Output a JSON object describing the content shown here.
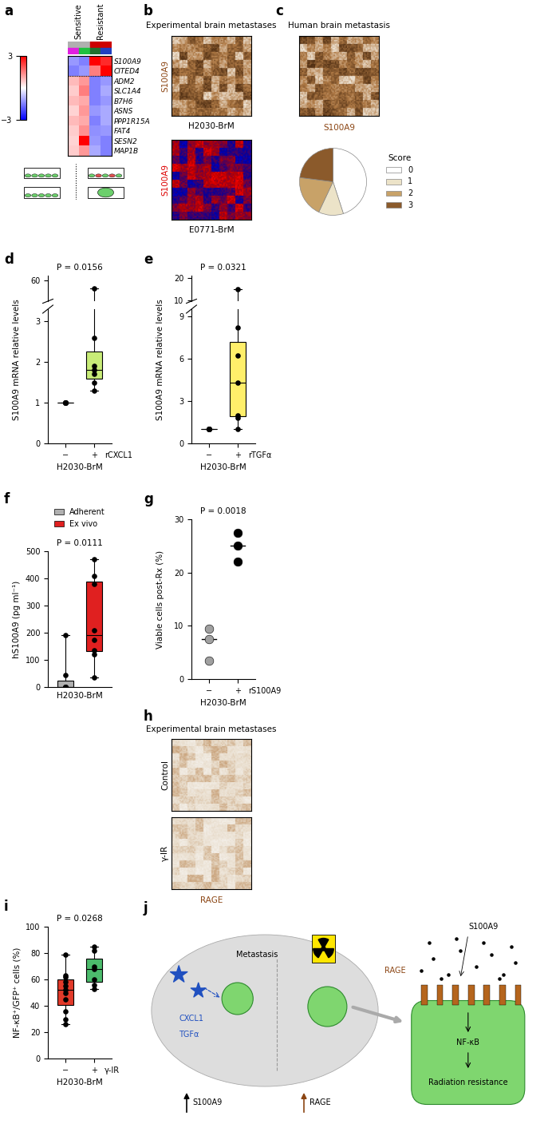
{
  "chart_data": [
    {
      "panel": "a",
      "type": "heatmap",
      "column_groups": [
        {
          "name": "Sensitive",
          "columns": 2
        },
        {
          "name": "Resistant",
          "columns": 2
        }
      ],
      "column_colors": [
        "#e020e0",
        "#20c040",
        "#207030",
        "#2040c0"
      ],
      "rows": [
        "S100A9",
        "CITED4",
        "ADM2",
        "SLC1A4",
        "B7H6",
        "ASNS",
        "PPP1R15A",
        "FAT4",
        "SESN2",
        "MAP1B"
      ],
      "cells": [
        [
          -1.2,
          -1.5,
          3.0,
          2.5
        ],
        [
          -1.5,
          -1.2,
          1.5,
          3.0
        ],
        [
          0.8,
          1.2,
          -1.5,
          -1.2
        ],
        [
          0.6,
          1.5,
          -1.5,
          -1.0
        ],
        [
          0.8,
          1.0,
          -1.5,
          -1.2
        ],
        [
          0.5,
          1.2,
          -1.2,
          -1.0
        ],
        [
          0.8,
          1.0,
          -1.5,
          -1.0
        ],
        [
          0.6,
          1.3,
          -1.3,
          -1.2
        ],
        [
          0.5,
          3.0,
          -1.2,
          -1.5
        ],
        [
          0.6,
          1.2,
          -1.0,
          -1.5
        ]
      ],
      "colorbar": {
        "range": [
          -3,
          3
        ],
        "ticks": [
          {
            "value": -3,
            "label": "−3"
          },
          3
        ]
      }
    },
    {
      "type": "pie",
      "title": "S100A9",
      "legend_title": "Score",
      "legend": "right",
      "categories": [
        "0",
        "1",
        "2",
        "3"
      ],
      "values": [
        45,
        12,
        20,
        23
      ],
      "colors": [
        "#ffffff",
        "#ece3c8",
        "#c8a268",
        "#8b5a2b"
      ]
    },
    {
      "panel": "d",
      "type": "box",
      "annotation": "P = 0.0156",
      "categories": [
        "−",
        "+"
      ],
      "treatment": "rCXCL1",
      "xlabel": "H2030-BrM",
      "ylabel": "S100A9 mRNA relative levels",
      "values": [
        [
          1,
          1,
          1,
          1,
          1,
          1,
          1
        ],
        [
          1.3,
          1.5,
          1.7,
          1.8,
          1.9,
          2.6,
          57
        ]
      ],
      "colors": [
        "#ffffff",
        "#c8ec78"
      ],
      "ylim": [
        0,
        3.3
      ],
      "yticks": [
        0,
        1,
        2,
        3
      ],
      "upper_ylim": [
        52,
        62
      ],
      "upper_yticks": [
        60
      ]
    },
    {
      "panel": "e",
      "type": "box",
      "annotation": "P = 0.0321",
      "categories": [
        "−",
        "+"
      ],
      "treatment": "rTGFα",
      "xlabel": "H2030-BrM",
      "ylabel": "S100A9 mRNA relative levels",
      "values": [
        [
          1,
          1,
          1,
          1,
          1,
          1,
          1
        ],
        [
          1.0,
          1.8,
          2.0,
          4.3,
          6.2,
          8.2,
          15.0
        ]
      ],
      "colors": [
        "#ffffff",
        "#ffef6a"
      ],
      "ylim": [
        0,
        9.5
      ],
      "yticks": [
        0,
        3,
        6,
        9
      ],
      "upper_ylim": [
        9.5,
        21
      ],
      "upper_yticks": [
        10,
        20
      ]
    },
    {
      "panel": "f",
      "type": "box",
      "annotation": "P = 0.0111",
      "xlabel": "H2030-BrM",
      "ylabel": "hS100A9 (pg ml⁻¹)",
      "legend": "top",
      "series": [
        {
          "name": "Adherent",
          "color": "#b0b0b0",
          "values": [
            0,
            0,
            0,
            0,
            0,
            45,
            190
          ]
        },
        {
          "name": "Ex vivo",
          "color": "#e02020",
          "values": [
            35,
            120,
            135,
            175,
            210,
            380,
            410,
            470
          ]
        }
      ],
      "ylim": [
        0,
        500
      ],
      "yticks": [
        0,
        100,
        200,
        300,
        400,
        500
      ]
    },
    {
      "panel": "g",
      "type": "dot",
      "annotation": "P = 0.0018",
      "categories": [
        "−",
        "+"
      ],
      "treatment": "rS100A9",
      "xlabel": "H2030-BrM",
      "ylabel": "Viable cells post-Rx (%)",
      "values": [
        [
          9.5,
          7.5,
          3.5
        ],
        [
          27.5,
          25,
          22
        ]
      ],
      "colors": [
        "#a0a0a0",
        "#000000"
      ],
      "ylim": [
        0,
        30
      ],
      "yticks": [
        0,
        10,
        20,
        30
      ]
    },
    {
      "panel": "i",
      "type": "box",
      "annotation": "P = 0.0268",
      "categories": [
        "−",
        "+"
      ],
      "treatment": "γ-IR",
      "xlabel": "H2030-BrM",
      "ylabel": "NF-κB⁺/GFP⁺ cells (%)",
      "values": [
        [
          26,
          30,
          36,
          45,
          50,
          52,
          55,
          58,
          62,
          63,
          79
        ],
        [
          53,
          56,
          60,
          68,
          70,
          82,
          85
        ]
      ],
      "colors": [
        "#e23a2a",
        "#4cbb6c"
      ],
      "ylim": [
        0,
        100
      ],
      "yticks": [
        0,
        20,
        40,
        60,
        80,
        100
      ]
    }
  ],
  "images": [
    {
      "panel": "b",
      "title": "Experimental brain metastases",
      "items": [
        {
          "stain": "S100A9",
          "caption": "H2030-BrM"
        },
        {
          "stain": "S100A9",
          "caption": "E0771-BrM"
        }
      ]
    },
    {
      "panel": "c",
      "title": "Human brain metastasis",
      "items": [
        {
          "stain": "S100A9"
        }
      ]
    },
    {
      "panel": "h",
      "title": "Experimental brain metastases",
      "stain": "RAGE",
      "items": [
        {
          "condition": "Control"
        },
        {
          "condition": "γ-IR"
        }
      ]
    }
  ],
  "diagram": {
    "panel": "j",
    "stroma": [
      "CXCL1",
      "TGFα"
    ],
    "tumor": "Metastasis",
    "ligand": "S100A9",
    "receptor": "RAGE",
    "pathway": "NF-κB",
    "outcome": "Radiation resistance",
    "upregulated": [
      "S100A9",
      "RAGE"
    ]
  }
}
